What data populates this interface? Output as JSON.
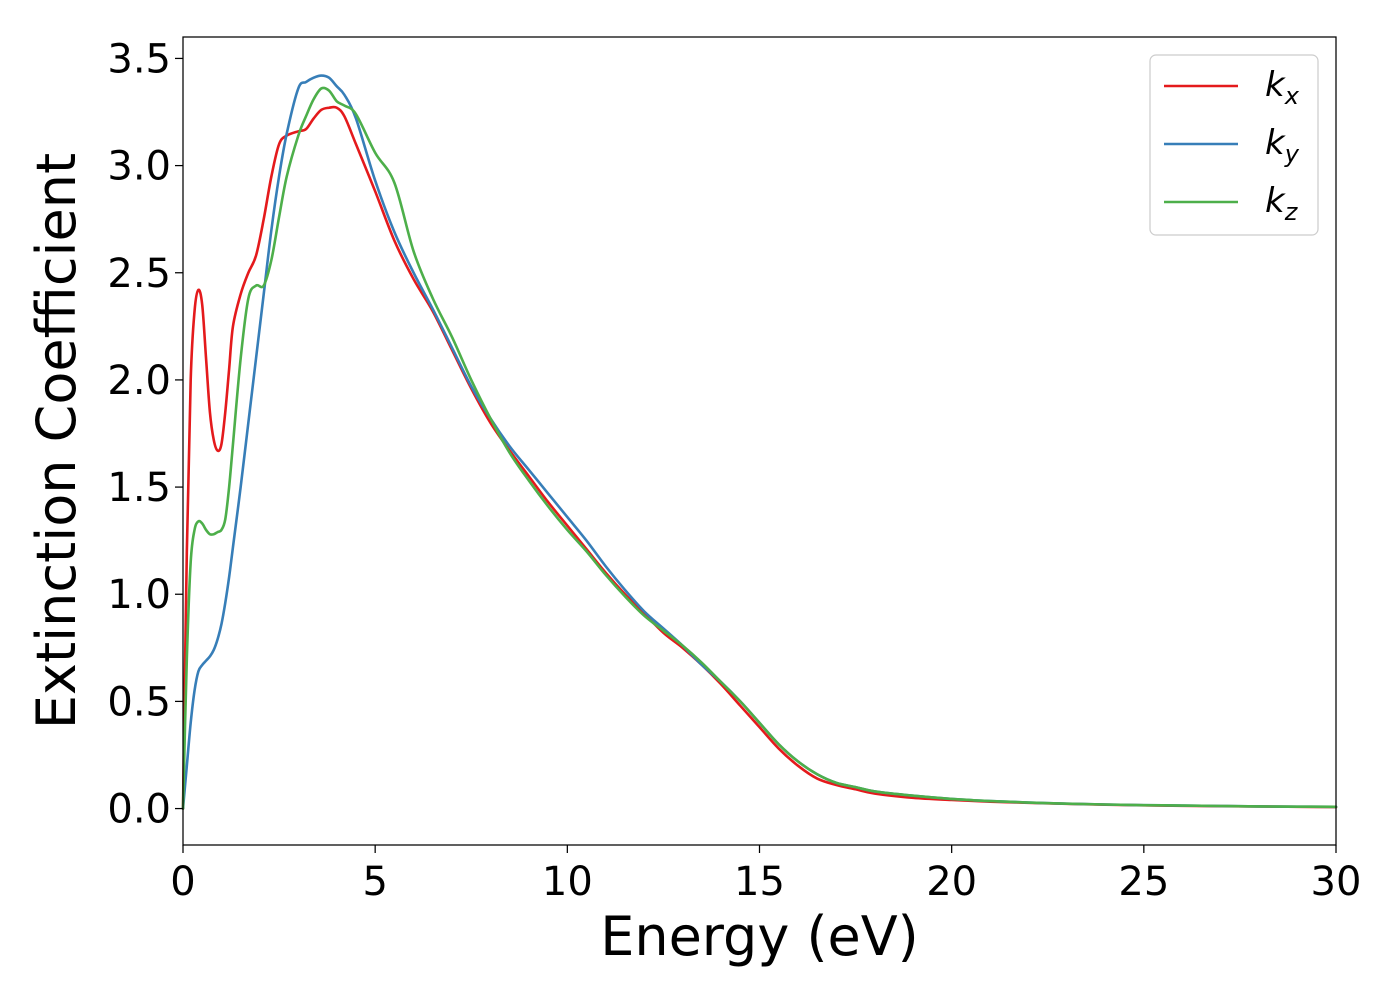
{
  "chart_data": {
    "type": "line",
    "title": "",
    "xlabel": "Energy (eV)",
    "ylabel": "Extinction Coefficient",
    "xlim": [
      0,
      30
    ],
    "ylim": [
      -0.17,
      3.6
    ],
    "xticks": [
      0,
      5,
      10,
      15,
      20,
      25,
      30
    ],
    "xtick_labels": [
      "0",
      "5",
      "10",
      "15",
      "20",
      "25",
      "30"
    ],
    "yticks": [
      0.0,
      0.5,
      1.0,
      1.5,
      2.0,
      2.5,
      3.0,
      3.5
    ],
    "ytick_labels": [
      "0.0",
      "0.5",
      "1.0",
      "1.5",
      "2.0",
      "2.5",
      "3.0",
      "3.5"
    ],
    "grid": false,
    "legend_position": "top-right",
    "series": [
      {
        "name": "kx",
        "base": "k",
        "sub": "x",
        "color": "#e41a1c",
        "x": [
          0,
          0.1,
          0.2,
          0.3,
          0.4,
          0.5,
          0.6,
          0.7,
          0.8,
          0.9,
          1.0,
          1.1,
          1.2,
          1.3,
          1.5,
          1.7,
          1.9,
          2.1,
          2.3,
          2.5,
          2.7,
          3.0,
          3.2,
          3.4,
          3.6,
          3.8,
          4.0,
          4.2,
          4.5,
          5.0,
          5.5,
          6.0,
          6.5,
          7.0,
          7.5,
          8.0,
          8.5,
          9.0,
          9.5,
          10.0,
          10.5,
          11.0,
          11.5,
          12.0,
          12.5,
          13.0,
          13.5,
          14.0,
          14.5,
          15.0,
          15.5,
          16.0,
          16.5,
          17.0,
          17.5,
          18.0,
          19.0,
          20.0,
          21.0,
          22.0,
          23.0,
          24.0,
          25.0,
          26.0,
          27.0,
          28.0,
          29.0,
          30.0
        ],
        "y": [
          0.0,
          1.2,
          2.0,
          2.32,
          2.42,
          2.35,
          2.1,
          1.85,
          1.72,
          1.67,
          1.7,
          1.85,
          2.05,
          2.25,
          2.4,
          2.5,
          2.58,
          2.75,
          2.95,
          3.1,
          3.14,
          3.16,
          3.17,
          3.22,
          3.26,
          3.27,
          3.27,
          3.23,
          3.1,
          2.88,
          2.65,
          2.47,
          2.32,
          2.14,
          1.96,
          1.8,
          1.67,
          1.55,
          1.43,
          1.32,
          1.21,
          1.1,
          1.0,
          0.91,
          0.82,
          0.75,
          0.67,
          0.58,
          0.48,
          0.38,
          0.28,
          0.2,
          0.14,
          0.11,
          0.09,
          0.07,
          0.05,
          0.04,
          0.032,
          0.027,
          0.022,
          0.018,
          0.015,
          0.013,
          0.011,
          0.01,
          0.008,
          0.007
        ]
      },
      {
        "name": "ky",
        "base": "k",
        "sub": "y",
        "color": "#377eb8",
        "x": [
          0,
          0.1,
          0.2,
          0.3,
          0.4,
          0.5,
          0.6,
          0.7,
          0.8,
          0.9,
          1.0,
          1.1,
          1.2,
          1.3,
          1.5,
          1.7,
          1.9,
          2.1,
          2.3,
          2.5,
          2.7,
          3.0,
          3.2,
          3.4,
          3.6,
          3.8,
          4.0,
          4.2,
          4.5,
          5.0,
          5.5,
          6.0,
          6.5,
          7.0,
          7.5,
          8.0,
          8.5,
          9.0,
          9.5,
          10.0,
          10.5,
          11.0,
          11.5,
          12.0,
          12.5,
          13.0,
          13.5,
          14.0,
          14.5,
          15.0,
          15.5,
          16.0,
          16.5,
          17.0,
          17.5,
          18.0,
          19.0,
          20.0,
          21.0,
          22.0,
          23.0,
          24.0,
          25.0,
          26.0,
          27.0,
          28.0,
          29.0,
          30.0
        ],
        "y": [
          0.0,
          0.2,
          0.4,
          0.55,
          0.64,
          0.67,
          0.69,
          0.71,
          0.74,
          0.79,
          0.86,
          0.96,
          1.08,
          1.22,
          1.5,
          1.8,
          2.1,
          2.4,
          2.7,
          2.95,
          3.15,
          3.36,
          3.39,
          3.41,
          3.42,
          3.41,
          3.37,
          3.33,
          3.22,
          2.93,
          2.69,
          2.5,
          2.33,
          2.15,
          1.97,
          1.82,
          1.69,
          1.58,
          1.47,
          1.36,
          1.25,
          1.13,
          1.02,
          0.92,
          0.84,
          0.76,
          0.67,
          0.59,
          0.5,
          0.4,
          0.3,
          0.22,
          0.16,
          0.12,
          0.1,
          0.08,
          0.06,
          0.045,
          0.035,
          0.028,
          0.023,
          0.019,
          0.016,
          0.014,
          0.012,
          0.01,
          0.009,
          0.008
        ]
      },
      {
        "name": "kz",
        "base": "k",
        "sub": "z",
        "color": "#4daf4a",
        "x": [
          0,
          0.1,
          0.2,
          0.3,
          0.4,
          0.5,
          0.6,
          0.7,
          0.8,
          0.9,
          1.0,
          1.1,
          1.2,
          1.3,
          1.5,
          1.7,
          1.9,
          2.1,
          2.3,
          2.5,
          2.7,
          3.0,
          3.2,
          3.4,
          3.6,
          3.8,
          4.0,
          4.2,
          4.5,
          5.0,
          5.5,
          6.0,
          6.5,
          7.0,
          7.5,
          8.0,
          8.5,
          9.0,
          9.5,
          10.0,
          10.5,
          11.0,
          11.5,
          12.0,
          12.5,
          13.0,
          13.5,
          14.0,
          14.5,
          15.0,
          15.5,
          16.0,
          16.5,
          17.0,
          17.5,
          18.0,
          19.0,
          20.0,
          21.0,
          22.0,
          23.0,
          24.0,
          25.0,
          26.0,
          27.0,
          28.0,
          29.0,
          30.0
        ],
        "y": [
          0.0,
          0.7,
          1.15,
          1.3,
          1.34,
          1.33,
          1.3,
          1.28,
          1.28,
          1.29,
          1.3,
          1.35,
          1.5,
          1.7,
          2.1,
          2.38,
          2.44,
          2.44,
          2.56,
          2.76,
          2.95,
          3.14,
          3.23,
          3.31,
          3.36,
          3.35,
          3.3,
          3.28,
          3.24,
          3.06,
          2.92,
          2.6,
          2.38,
          2.2,
          2.0,
          1.82,
          1.66,
          1.53,
          1.41,
          1.3,
          1.2,
          1.09,
          0.99,
          0.9,
          0.83,
          0.76,
          0.68,
          0.59,
          0.5,
          0.4,
          0.3,
          0.22,
          0.16,
          0.12,
          0.1,
          0.08,
          0.06,
          0.045,
          0.035,
          0.028,
          0.023,
          0.019,
          0.016,
          0.014,
          0.012,
          0.01,
          0.009,
          0.008
        ]
      }
    ]
  }
}
